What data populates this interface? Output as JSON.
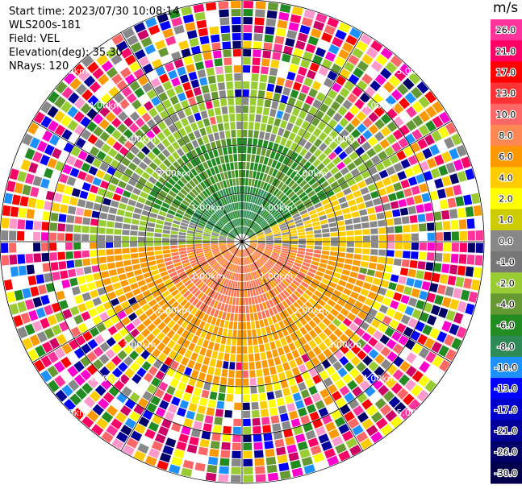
{
  "header": {
    "start_time": "Start time: 2023/07/30 10:08:14",
    "station": "WLS200s-181",
    "field": "Field: VEL",
    "elevation": "Elevation(deg): 35.30",
    "nrays": "NRays: 120"
  },
  "rings": [
    {
      "label": "1.00km"
    },
    {
      "label": "2.00km"
    },
    {
      "label": "3.00km"
    },
    {
      "label": "4.00km"
    },
    {
      "label": "5.00km"
    }
  ],
  "colorbar": {
    "unit": "m/s",
    "labels": [
      "26.0",
      "21.0",
      "17.0",
      "13.0",
      "10.0",
      "8.0",
      "6.0",
      "4.0",
      "2.0",
      "1.0",
      "0.0",
      "-1.0",
      "-2.0",
      "-4.0",
      "-6.0",
      "-8.0",
      "-10.0",
      "-13.0",
      "-17.0",
      "-21.0",
      "-26.0",
      "-30.0"
    ],
    "colors": [
      "#ff3399",
      "#ff0066",
      "#ff0000",
      "#ff3333",
      "#ff6666",
      "#ff8855",
      "#ff9900",
      "#ffcc00",
      "#ffff00",
      "#cccc00",
      "#888888",
      "#777777",
      "#99cc33",
      "#669933",
      "#228B22",
      "#2e8b57",
      "#1e90ff",
      "#0000ff",
      "#0000cc",
      "#000099",
      "#000066",
      "#00004d"
    ]
  }
}
